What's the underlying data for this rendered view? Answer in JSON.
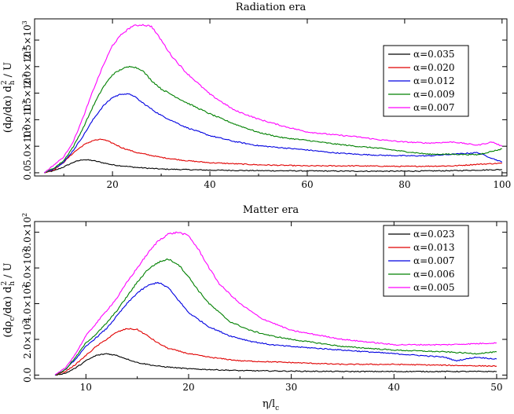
{
  "chart_data": [
    {
      "type": "line",
      "title": "Radiation era",
      "xlabel": "",
      "ylabel": "(dρ/dα) d_h^2 / U",
      "ylabel_parts": {
        "main": "(dρ/dα) d",
        "sub": "h",
        "sup": "2",
        "tail": " / U"
      },
      "xlim": [
        4,
        101
      ],
      "ylim": [
        -60,
        2900
      ],
      "xticks": [
        20,
        40,
        60,
        80,
        100
      ],
      "yticks": [
        {
          "value": 0,
          "mantissa": "0.0",
          "exp": ""
        },
        {
          "value": 500,
          "mantissa": "5.0×10",
          "exp": "2"
        },
        {
          "value": 1000,
          "mantissa": "1.0×10",
          "exp": "3"
        },
        {
          "value": 1500,
          "mantissa": "1.5×10",
          "exp": "3"
        },
        {
          "value": 2000,
          "mantissa": "2.0×10",
          "exp": "3"
        },
        {
          "value": 2500,
          "mantissa": "2.5×10",
          "exp": "3"
        }
      ],
      "legend_position": "upper-right",
      "series": [
        {
          "name": "α=0.035",
          "color": "#000000",
          "x": [
            6,
            8,
            10,
            12,
            14,
            16,
            18,
            20,
            25,
            30,
            40,
            50,
            60,
            70,
            80,
            90,
            95,
            100
          ],
          "y": [
            0,
            40,
            110,
            200,
            250,
            230,
            190,
            150,
            100,
            70,
            50,
            40,
            35,
            30,
            30,
            40,
            50,
            60
          ]
        },
        {
          "name": "α=0.020",
          "color": "#e00000",
          "x": [
            6,
            8,
            10,
            12,
            14,
            16,
            18,
            20,
            22,
            25,
            30,
            35,
            40,
            50,
            60,
            70,
            80,
            90,
            95,
            100
          ],
          "y": [
            0,
            60,
            200,
            380,
            520,
            610,
            630,
            560,
            470,
            380,
            290,
            230,
            190,
            150,
            130,
            130,
            120,
            130,
            160,
            180
          ]
        },
        {
          "name": "α=0.012",
          "color": "#0000e0",
          "x": [
            6,
            8,
            10,
            12,
            14,
            16,
            18,
            20,
            22,
            24,
            26,
            28,
            30,
            35,
            40,
            45,
            50,
            55,
            60,
            65,
            70,
            75,
            80,
            85,
            90,
            95,
            100
          ],
          "y": [
            0,
            80,
            200,
            430,
            700,
            1000,
            1250,
            1420,
            1490,
            1470,
            1330,
            1200,
            1080,
            860,
            700,
            590,
            510,
            470,
            430,
            380,
            350,
            330,
            320,
            320,
            350,
            380,
            200
          ]
        },
        {
          "name": "α=0.009",
          "color": "#008000",
          "x": [
            6,
            8,
            10,
            12,
            14,
            16,
            18,
            20,
            22,
            24,
            26,
            28,
            30,
            35,
            40,
            45,
            50,
            55,
            60,
            65,
            70,
            75,
            80,
            85,
            90,
            95,
            100
          ],
          "y": [
            0,
            90,
            230,
            500,
            850,
            1250,
            1600,
            1850,
            1960,
            2010,
            1940,
            1740,
            1580,
            1330,
            1110,
            920,
            760,
            660,
            610,
            550,
            500,
            460,
            400,
            350,
            350,
            340,
            450
          ]
        },
        {
          "name": "α=0.007",
          "color": "#ff00ff",
          "x": [
            6,
            8,
            10,
            12,
            14,
            16,
            18,
            20,
            22,
            24,
            26,
            28,
            30,
            32,
            35,
            40,
            45,
            50,
            55,
            60,
            65,
            70,
            75,
            80,
            85,
            90,
            95,
            98,
            100
          ],
          "y": [
            0,
            150,
            300,
            600,
            1050,
            1550,
            2000,
            2400,
            2620,
            2760,
            2790,
            2760,
            2500,
            2220,
            1900,
            1480,
            1180,
            1010,
            880,
            770,
            720,
            680,
            620,
            580,
            560,
            580,
            520,
            580,
            500
          ]
        }
      ]
    },
    {
      "type": "line",
      "title": "Matter era",
      "xlabel": "η/l_c",
      "xlabel_parts": {
        "main": "η/l",
        "sub": "c"
      },
      "ylabel": "(dρ_c/dα) d_h^2 / U",
      "ylabel_parts": {
        "main": "(dρ",
        "sub1": "c",
        "mid": "/dα) d",
        "sub": "h",
        "sup": "2",
        "tail": " / U"
      },
      "xlim": [
        5,
        51
      ],
      "ylim": [
        -20,
        860
      ],
      "xticks": [
        10,
        20,
        30,
        40,
        50
      ],
      "yticks": [
        {
          "value": 0,
          "mantissa": "0.0",
          "exp": ""
        },
        {
          "value": 200,
          "mantissa": "2.0×10",
          "exp": "2"
        },
        {
          "value": 400,
          "mantissa": "4.0×10",
          "exp": "2"
        },
        {
          "value": 600,
          "mantissa": "6.0×10",
          "exp": "2"
        },
        {
          "value": 800,
          "mantissa": "8.0×10",
          "exp": "2"
        }
      ],
      "legend_position": "upper-right",
      "series": [
        {
          "name": "α=0.023",
          "color": "#000000",
          "x": [
            7,
            8,
            9,
            10,
            11,
            12,
            13,
            14,
            15,
            17,
            20,
            25,
            30,
            35,
            40,
            45,
            50
          ],
          "y": [
            0,
            10,
            40,
            80,
            110,
            120,
            110,
            90,
            70,
            50,
            35,
            25,
            22,
            20,
            20,
            20,
            20
          ]
        },
        {
          "name": "α=0.013",
          "color": "#e00000",
          "x": [
            7,
            8,
            9,
            10,
            11,
            12,
            13,
            14,
            15,
            16,
            17,
            18,
            20,
            22,
            25,
            30,
            35,
            40,
            45,
            50
          ],
          "y": [
            0,
            20,
            60,
            110,
            160,
            200,
            240,
            260,
            255,
            220,
            180,
            150,
            120,
            100,
            80,
            70,
            60,
            60,
            55,
            50
          ]
        },
        {
          "name": "α=0.007",
          "color": "#0000e0",
          "x": [
            7,
            8,
            9,
            10,
            11,
            12,
            13,
            14,
            15,
            16,
            17,
            18,
            19,
            20,
            22,
            24,
            26,
            28,
            30,
            35,
            40,
            45,
            46,
            48,
            50
          ],
          "y": [
            0,
            30,
            90,
            160,
            210,
            260,
            330,
            400,
            460,
            500,
            520,
            490,
            420,
            350,
            270,
            220,
            190,
            170,
            160,
            140,
            120,
            100,
            80,
            100,
            90
          ]
        },
        {
          "name": "α=0.006",
          "color": "#008000",
          "x": [
            7,
            8,
            9,
            10,
            11,
            12,
            13,
            14,
            15,
            16,
            17,
            18,
            19,
            20,
            21,
            22,
            24,
            26,
            28,
            30,
            35,
            40,
            45,
            48,
            50
          ],
          "y": [
            0,
            30,
            100,
            180,
            230,
            290,
            360,
            440,
            520,
            590,
            630,
            650,
            620,
            550,
            470,
            400,
            300,
            250,
            220,
            200,
            160,
            140,
            130,
            120,
            130
          ]
        },
        {
          "name": "α=0.005",
          "color": "#ff00ff",
          "x": [
            7,
            8,
            9,
            10,
            11,
            12,
            13,
            14,
            15,
            16,
            17,
            18,
            19,
            20,
            21,
            22,
            23,
            25,
            27,
            30,
            35,
            40,
            45,
            50
          ],
          "y": [
            0,
            40,
            120,
            220,
            290,
            360,
            430,
            520,
            600,
            680,
            750,
            790,
            800,
            780,
            700,
            600,
            510,
            400,
            320,
            250,
            200,
            170,
            170,
            180
          ]
        }
      ]
    }
  ]
}
